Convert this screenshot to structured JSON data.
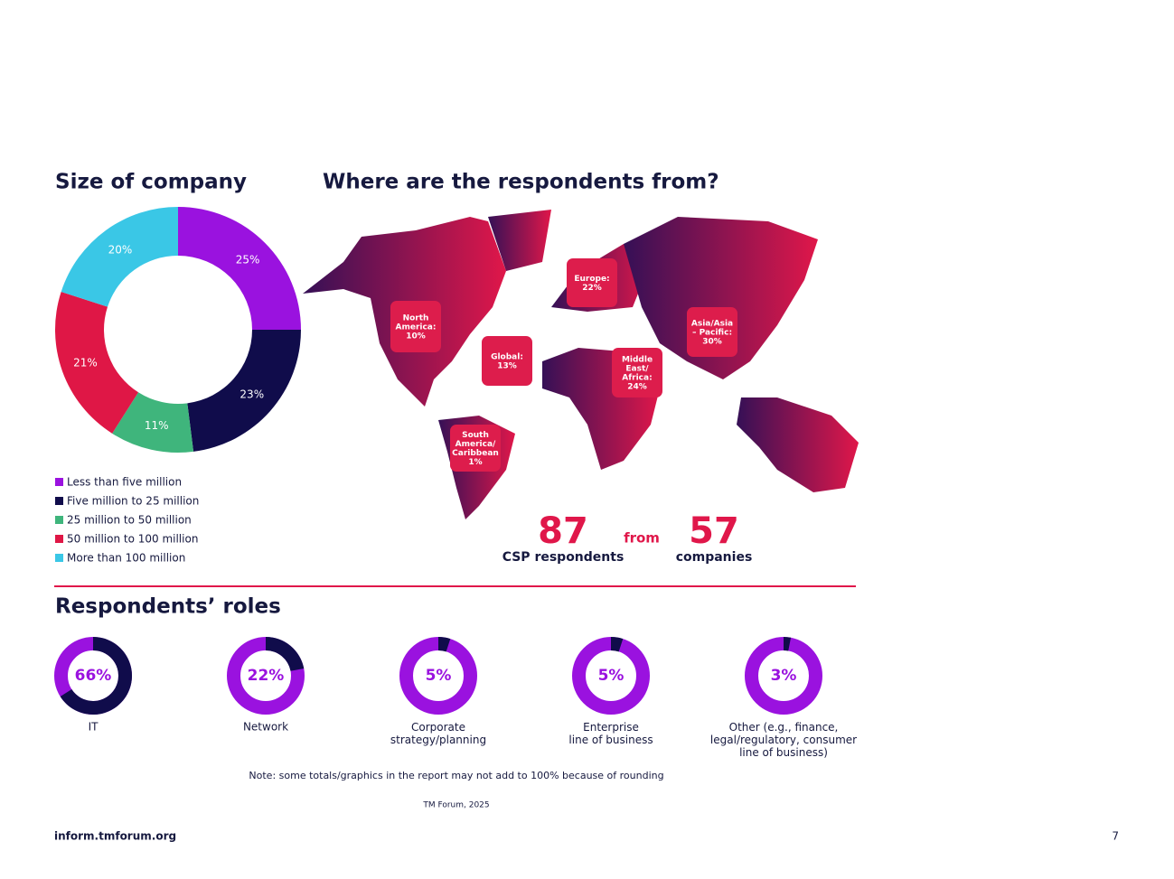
{
  "titles": {
    "size": "Size of company",
    "where": "Where are the respondents from?",
    "roles": "Respondents’ roles"
  },
  "chart_data": [
    {
      "type": "pie",
      "title": "Size of company",
      "categories": [
        "Less than five million",
        "Five million to 25 million",
        "25 million to 50 million",
        "50 million to 100 million",
        "More than 100 million"
      ],
      "values": [
        25,
        23,
        11,
        21,
        20
      ],
      "value_labels": [
        "25%",
        "23%",
        "11%",
        "21%",
        "20%"
      ],
      "colors": [
        "#9a12df",
        "#100c4b",
        "#3fb57c",
        "#df1746",
        "#3ac7e6"
      ]
    },
    {
      "type": "donut",
      "title": "Respondents’ roles",
      "categories": [
        "IT",
        "Network",
        "Corporate\nstrategy/planning",
        "Enterprise\nline of business",
        "Other (e.g., finance,\nlegal/regulatory, consumer\nline of business)"
      ],
      "values": [
        66,
        22,
        5,
        5,
        3
      ],
      "value_labels": [
        "66%",
        "22%",
        "5%",
        "5%",
        "3%"
      ],
      "color": "#100c4b",
      "track_color": "#9a12df"
    }
  ],
  "map": {
    "labels": [
      "North\nAmerica:\n10%",
      "Global:\n13%",
      "South\nAmerica/\nCaribbean\n1%",
      "Europe:\n22%",
      "Middle\nEast/\nAfrica:\n24%",
      "Asia/Asia\n– Pacific:\n30%"
    ]
  },
  "stats": {
    "respondents": 87,
    "respondents_label": "CSP respondents",
    "from": "from",
    "companies": 57,
    "companies_label": "companies"
  },
  "note": "Note: some totals/graphics in the report may not add to 100% because of rounding",
  "source": "TM Forum, 2025",
  "footer": {
    "url": "inform.tmforum.org",
    "page": "7"
  }
}
